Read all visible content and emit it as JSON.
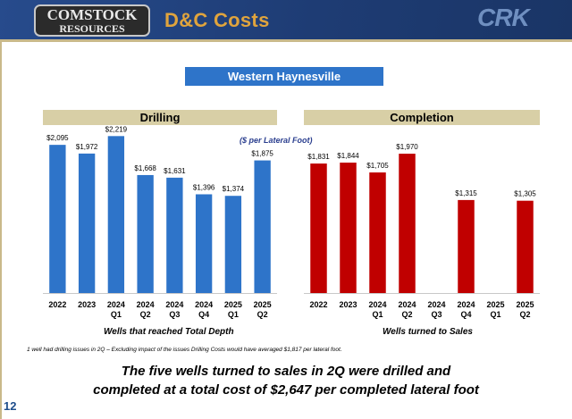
{
  "header": {
    "logo_text_line1": "COMSTOCK",
    "logo_text_line2": "RESOURCES",
    "title": "D&C Costs",
    "brand": "CRK"
  },
  "region_label": "Western Haynesville",
  "unit_note": "($ per Lateral Foot)",
  "footnote": "1 well had drilling issues in 2Q – Excluding impact of the issues Drilling Costs would have averaged $1,817 per lateral foot.",
  "conclusion": {
    "line1": "The five wells turned to sales in 2Q were drilled and",
    "line2": "completed at a total cost of $2,647 per completed lateral foot"
  },
  "page_number": "12",
  "colors": {
    "header": "#1f3f7a",
    "title": "#e0a43d",
    "drilling_bar": "#2e74c9",
    "completion_bar": "#c00000",
    "band": "#d8cfa6"
  },
  "chart_data": [
    {
      "type": "bar",
      "title": "Drilling",
      "xlabel": "Wells that reached Total Depth",
      "categories": [
        [
          "2022"
        ],
        [
          "2023"
        ],
        [
          "2024",
          "Q1"
        ],
        [
          "2024",
          "Q2"
        ],
        [
          "2024",
          "Q3"
        ],
        [
          "2024",
          "Q4"
        ],
        [
          "2025",
          "Q1"
        ],
        [
          "2025",
          "Q2"
        ]
      ],
      "values": [
        2095,
        1972,
        2219,
        1668,
        1631,
        1396,
        1374,
        1875
      ],
      "labels": [
        "$2,095",
        "$1,972",
        "$2,219",
        "$1,668",
        "$1,631",
        "$1,396",
        "$1,374",
        "$1,875"
      ],
      "ylim": [
        0,
        2400
      ],
      "color": "#2e74c9",
      "grid": false
    },
    {
      "type": "bar",
      "title": "Completion",
      "xlabel": "Wells turned to Sales",
      "categories": [
        [
          "2022"
        ],
        [
          "2023"
        ],
        [
          "2024",
          "Q1"
        ],
        [
          "2024",
          "Q2"
        ],
        [
          "2024",
          "Q3"
        ],
        [
          "2024",
          "Q4"
        ],
        [
          "2025",
          "Q1"
        ],
        [
          "2025",
          "Q2"
        ]
      ],
      "values": [
        1831,
        1844,
        1705,
        1970,
        null,
        1315,
        null,
        1305
      ],
      "labels": [
        "$1,831",
        "$1,844",
        "$1,705",
        "$1,970",
        "",
        "$1,315",
        "",
        "$1,305"
      ],
      "ylim": [
        0,
        2400
      ],
      "color": "#c00000",
      "grid": false
    }
  ]
}
